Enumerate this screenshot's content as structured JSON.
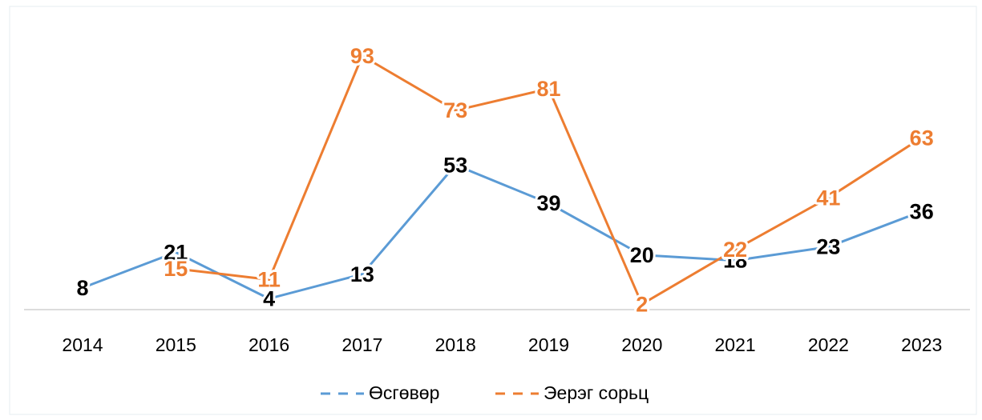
{
  "chart_data": {
    "type": "line",
    "categories": [
      "2014",
      "2015",
      "2016",
      "2017",
      "2018",
      "2019",
      "2020",
      "2021",
      "2022",
      "2023"
    ],
    "series": [
      {
        "name": "Өсгөвөр",
        "color": "#5b9bd5",
        "label_color": "#000000",
        "values": [
          8,
          21,
          4,
          13,
          53,
          39,
          20,
          18,
          23,
          36
        ]
      },
      {
        "name": "Эерэг сорьц",
        "color": "#ed7d31",
        "label_color": "#ed7d31",
        "values": [
          null,
          15,
          11,
          93,
          73,
          81,
          2,
          22,
          41,
          63
        ]
      }
    ],
    "ylim": [
      0,
      100
    ],
    "legend": "bottom"
  }
}
